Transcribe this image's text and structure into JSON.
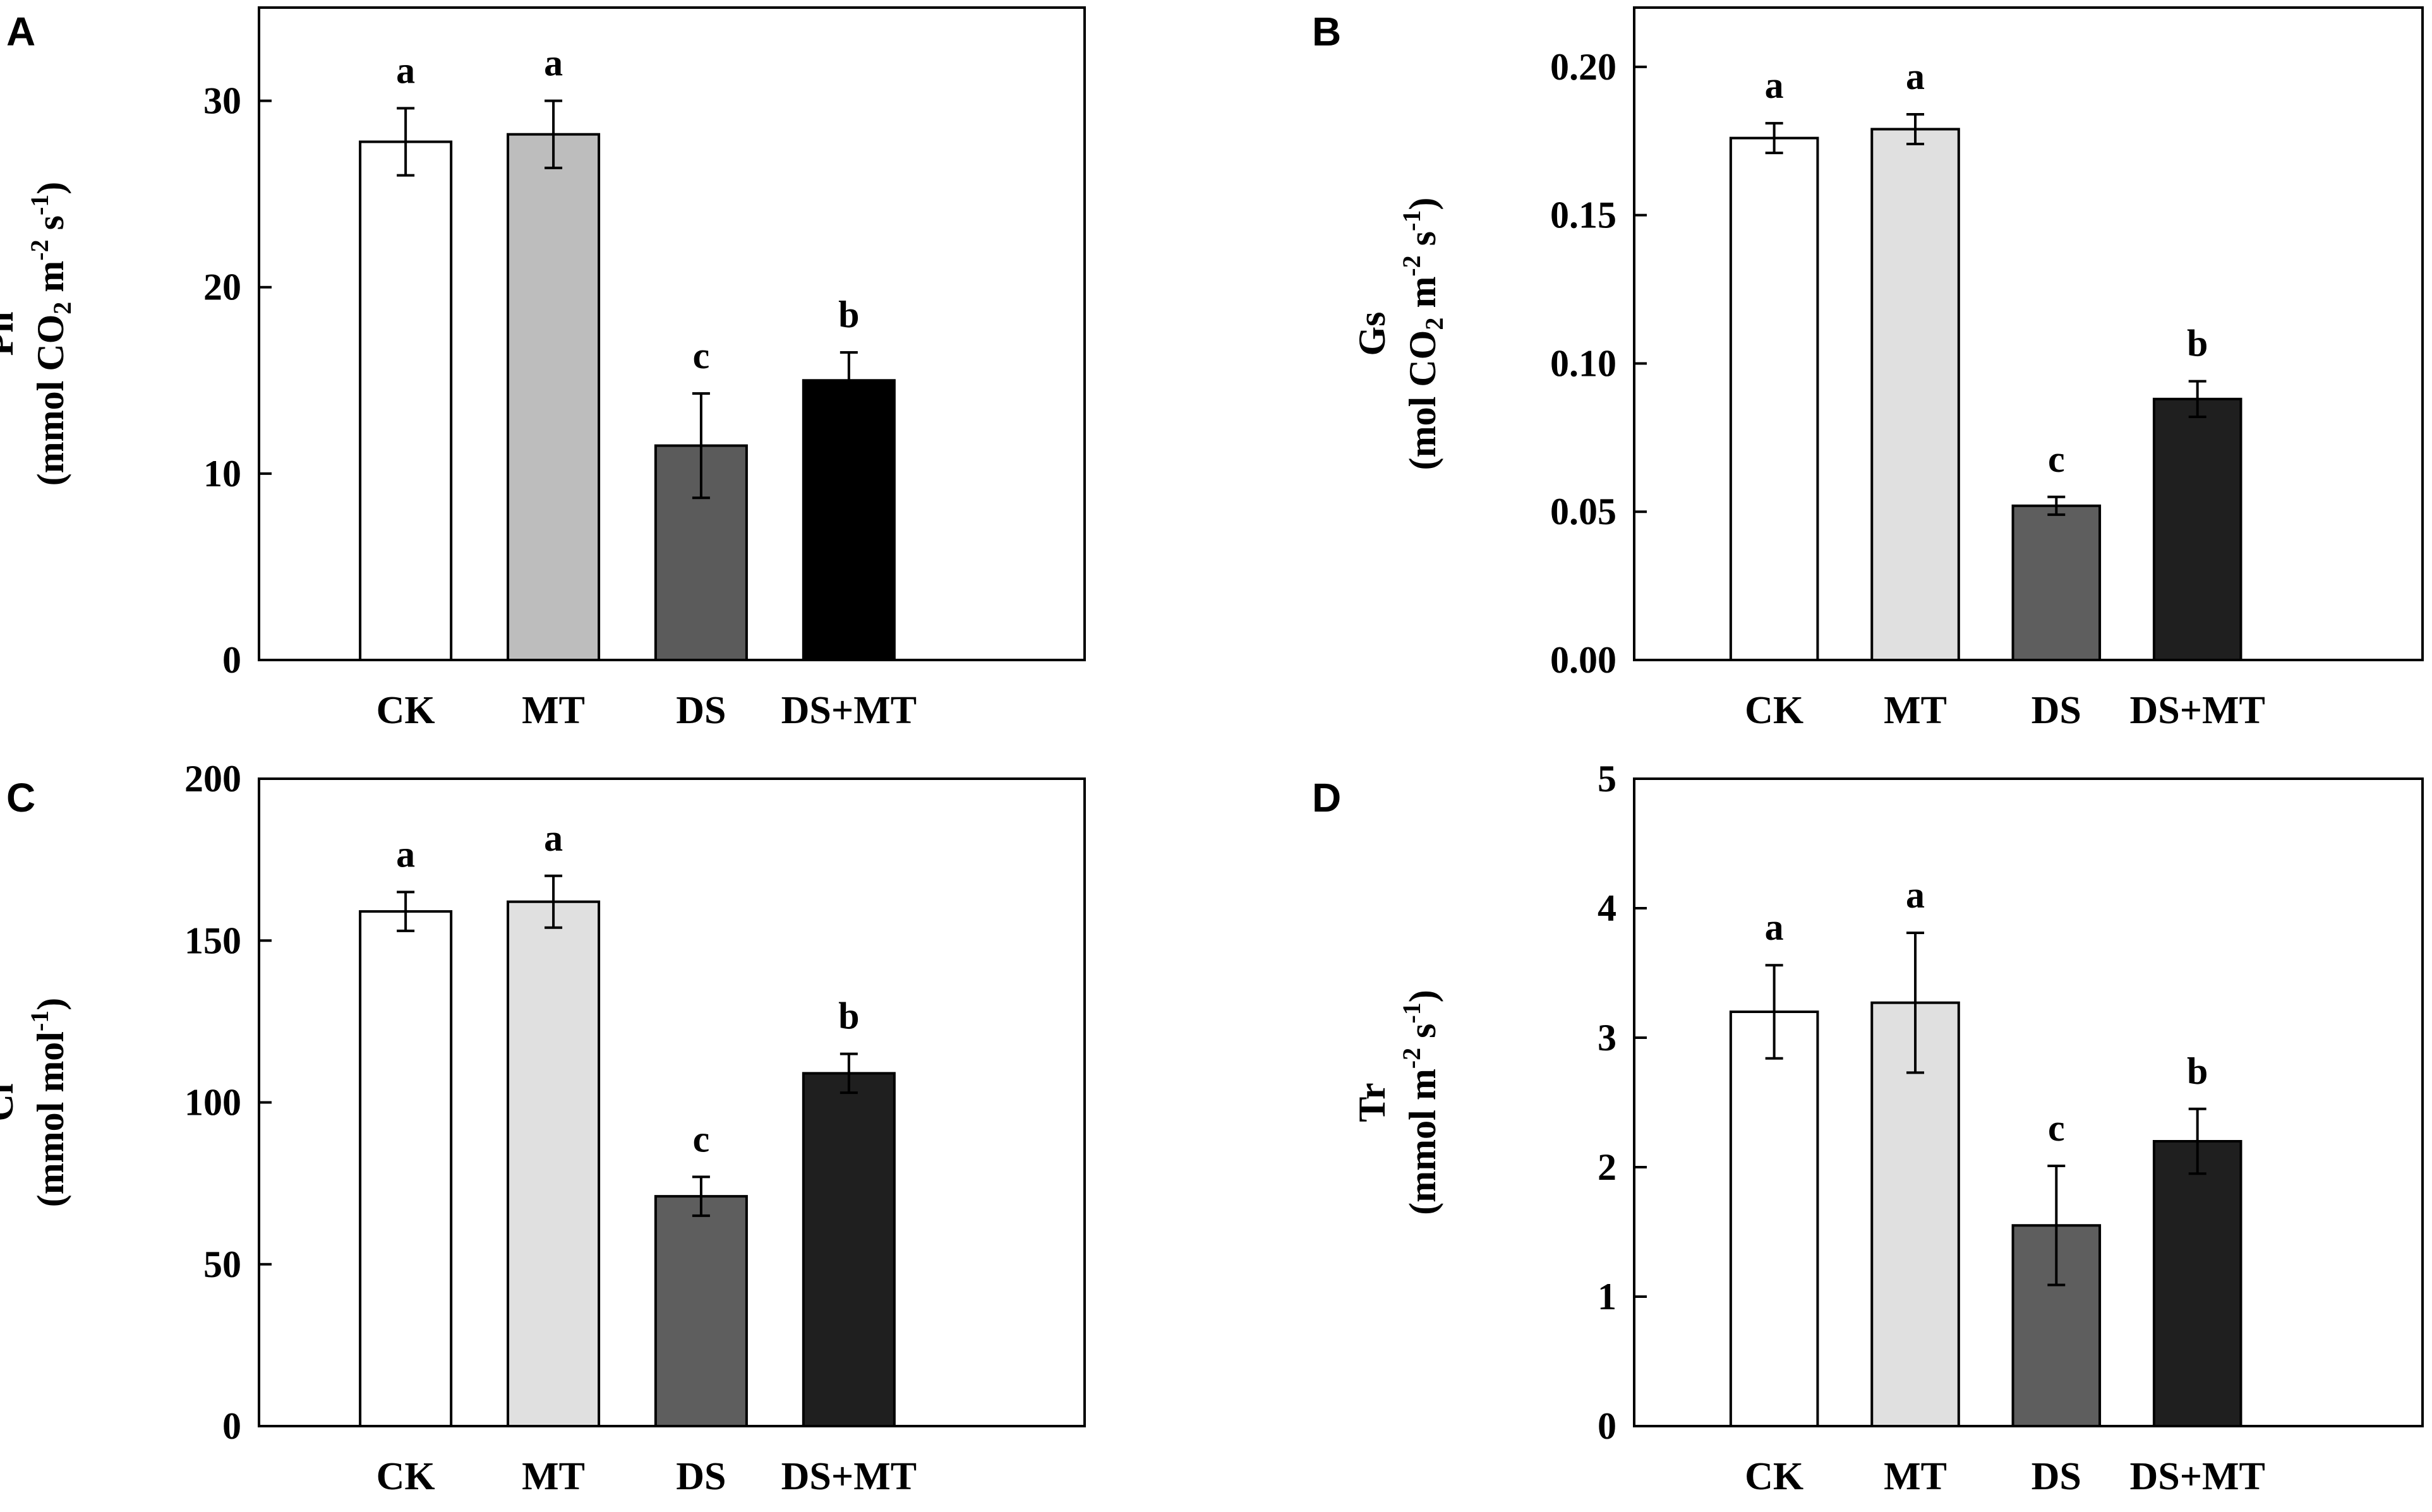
{
  "chart_data": [
    {
      "panel": "A",
      "type": "bar",
      "categories": [
        "CK",
        "MT",
        "DS",
        "DS+MT"
      ],
      "values": [
        27.8,
        28.2,
        11.5,
        15.0
      ],
      "errors": [
        1.8,
        1.8,
        2.8,
        1.5
      ],
      "significance": [
        "a",
        "a",
        "c",
        "b"
      ],
      "bar_colors": [
        "#ffffff",
        "#bdbdbd",
        "#5b5b5b",
        "#000000"
      ],
      "ylabel_main": "Pn",
      "ylabel_unit": "(mmol CO2 m-2 s-1)",
      "ylabel_unit_parts": [
        "(mmol CO",
        "2",
        " m",
        "-2",
        " s",
        "-1",
        ")"
      ],
      "yticks": [
        0,
        10,
        20,
        30
      ],
      "ytick_labels": [
        "0",
        "10",
        "20",
        "30"
      ],
      "ylim": [
        0,
        35
      ]
    },
    {
      "panel": "B",
      "type": "bar",
      "categories": [
        "CK",
        "MT",
        "DS",
        "DS+MT"
      ],
      "values": [
        0.176,
        0.179,
        0.052,
        0.088
      ],
      "errors": [
        0.005,
        0.005,
        0.003,
        0.006
      ],
      "significance": [
        "a",
        "a",
        "c",
        "b"
      ],
      "bar_colors": [
        "#ffffff",
        "#e0e0e0",
        "#5e5e5e",
        "#1f1f1f"
      ],
      "ylabel_main": "Gs",
      "ylabel_unit": "(mol CO2 m-2 s-1)",
      "ylabel_unit_parts": [
        "(mol CO",
        "2",
        "  m",
        "-2",
        " s",
        "-1",
        ")"
      ],
      "yticks": [
        0.0,
        0.05,
        0.1,
        0.15,
        0.2
      ],
      "ytick_labels": [
        "0.00",
        "0.05",
        "0.10",
        "0.15",
        "0.20"
      ],
      "ylim": [
        0,
        0.22
      ]
    },
    {
      "panel": "C",
      "type": "bar",
      "categories": [
        "CK",
        "MT",
        "DS",
        "DS+MT"
      ],
      "values": [
        159,
        162,
        71,
        109
      ],
      "errors": [
        6,
        8,
        6,
        6
      ],
      "significance": [
        "a",
        "a",
        "c",
        "b"
      ],
      "bar_colors": [
        "#ffffff",
        "#e0e0e0",
        "#5e5e5e",
        "#1f1f1f"
      ],
      "ylabel_main": "Ci",
      "ylabel_unit": "(mmol mol-1)",
      "ylabel_unit_parts": [
        "(mmol mol",
        "-1",
        ")"
      ],
      "yticks": [
        0,
        50,
        100,
        150,
        200
      ],
      "ytick_labels": [
        "0",
        "50",
        "100",
        "150",
        "200"
      ],
      "ylim": [
        0,
        200
      ]
    },
    {
      "panel": "D",
      "type": "bar",
      "categories": [
        "CK",
        "MT",
        "DS",
        "DS+MT"
      ],
      "values": [
        3.2,
        3.27,
        1.55,
        2.2
      ],
      "errors": [
        0.36,
        0.54,
        0.46,
        0.25
      ],
      "significance": [
        "a",
        "a",
        "c",
        "b"
      ],
      "bar_colors": [
        "#ffffff",
        "#e0e0e0",
        "#5e5e5e",
        "#1f1f1f"
      ],
      "ylabel_main": "Tr",
      "ylabel_unit": "(mmol m-2 s-1)",
      "ylabel_unit_parts": [
        "(mmol m",
        "-2",
        " s",
        "-1",
        ")"
      ],
      "yticks": [
        0,
        1,
        2,
        3,
        4,
        5
      ],
      "ytick_labels": [
        "0",
        "1",
        "2",
        "3",
        "4",
        "5"
      ],
      "ylim": [
        0,
        5
      ]
    }
  ]
}
